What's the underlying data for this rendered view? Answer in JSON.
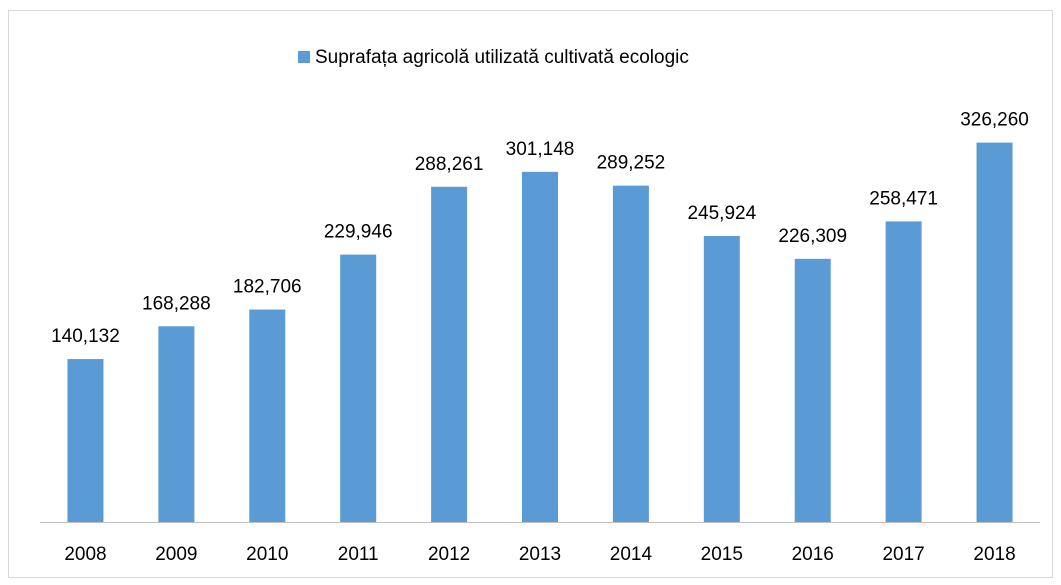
{
  "chart_data": {
    "type": "bar",
    "categories": [
      "2008",
      "2009",
      "2010",
      "2011",
      "2012",
      "2013",
      "2014",
      "2015",
      "2016",
      "2017",
      "2018"
    ],
    "series": [
      {
        "name": "Suprafața agricolă utilizată cultivată ecologic",
        "color": "#5b9bd5",
        "values": [
          140132,
          168288,
          182706,
          229946,
          288261,
          301148,
          289252,
          245924,
          226309,
          258471,
          326260
        ],
        "value_labels": [
          "140,132",
          "168,288",
          "182,706",
          "229,946",
          "288,261",
          "301,148",
          "289,252",
          "245,924",
          "226,309",
          "258,471",
          "326,260"
        ]
      }
    ],
    "ylim": [
      0,
      350000
    ],
    "legend": "top"
  }
}
